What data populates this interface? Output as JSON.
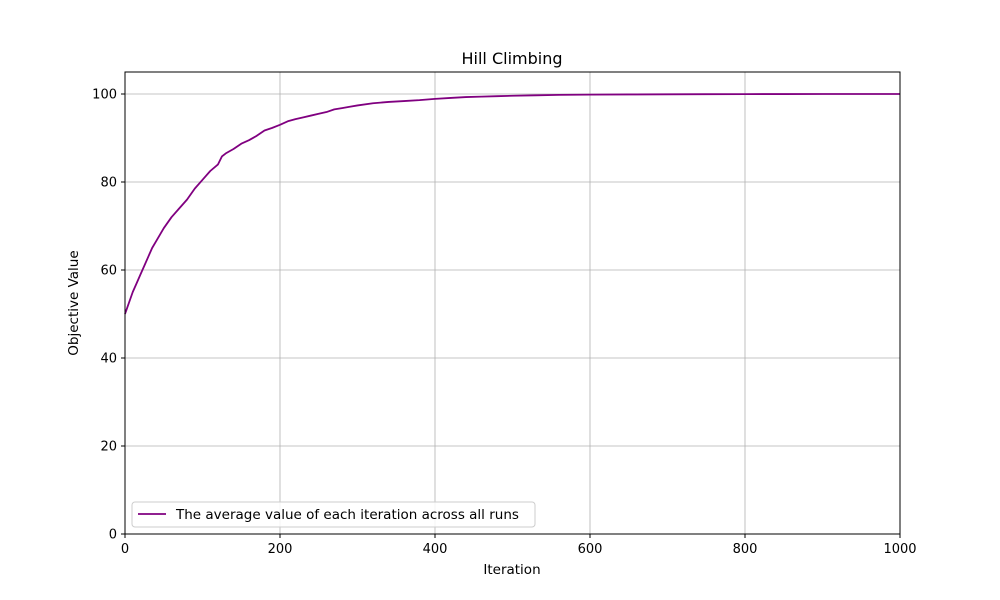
{
  "chart_data": {
    "type": "line",
    "title": "Hill Climbing",
    "xlabel": "Iteration",
    "ylabel": "Objective Value",
    "xlim": [
      0,
      1000
    ],
    "ylim": [
      0,
      105
    ],
    "xticks": [
      0,
      200,
      400,
      600,
      800,
      1000
    ],
    "yticks": [
      0,
      20,
      40,
      60,
      80,
      100
    ],
    "grid": true,
    "legend_position": "lower-left",
    "series": [
      {
        "name": "The average value of each iteration across all runs",
        "color": "#800080",
        "x": [
          0,
          5,
          10,
          15,
          20,
          25,
          30,
          35,
          40,
          45,
          50,
          60,
          70,
          80,
          90,
          100,
          110,
          120,
          125,
          130,
          140,
          150,
          160,
          170,
          180,
          190,
          200,
          210,
          220,
          230,
          240,
          250,
          260,
          270,
          280,
          290,
          300,
          320,
          340,
          360,
          380,
          400,
          420,
          440,
          460,
          480,
          500,
          530,
          560,
          600,
          650,
          700,
          750,
          800,
          850,
          900,
          950,
          1000
        ],
        "values": [
          50,
          52.5,
          55,
          57,
          59,
          61,
          63,
          65,
          66.5,
          68,
          69.5,
          72,
          74,
          76,
          78.5,
          80.5,
          82.5,
          84,
          85.8,
          86.5,
          87.5,
          88.7,
          89.5,
          90.5,
          91.7,
          92.3,
          93,
          93.8,
          94.3,
          94.7,
          95.1,
          95.5,
          95.9,
          96.5,
          96.8,
          97.1,
          97.4,
          97.9,
          98.2,
          98.4,
          98.6,
          98.9,
          99.1,
          99.3,
          99.4,
          99.5,
          99.6,
          99.7,
          99.8,
          99.85,
          99.9,
          99.93,
          99.96,
          99.98,
          99.99,
          100,
          100,
          100
        ]
      }
    ]
  }
}
